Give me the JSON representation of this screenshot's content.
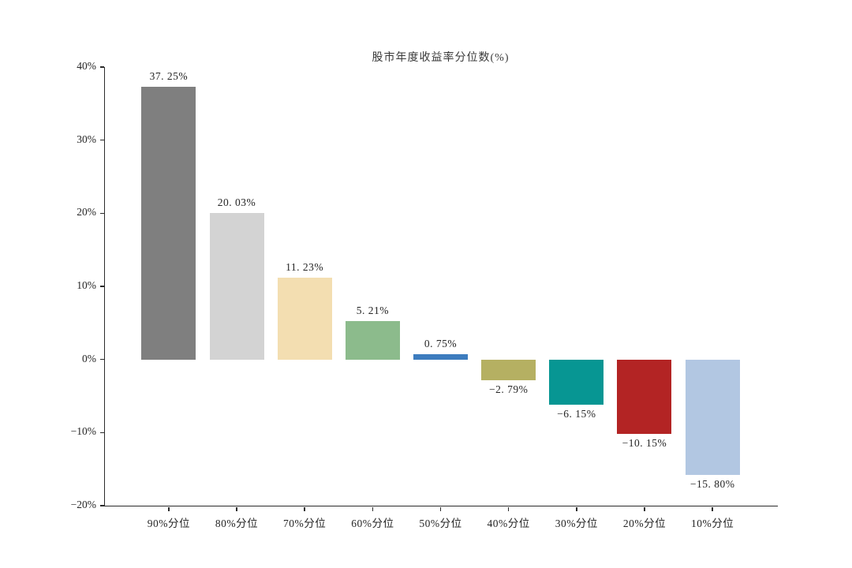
{
  "page": {
    "background_color": "#ffffff"
  },
  "chart_data": {
    "type": "bar",
    "title": "股市年度收益率分位数(%)",
    "xlabel": "",
    "ylabel": "",
    "grid": false,
    "legend": "none",
    "categories": [
      "90%分位",
      "80%分位",
      "70%分位",
      "60%分位",
      "50%分位",
      "40%分位",
      "30%分位",
      "20%分位",
      "10%分位"
    ],
    "values": [
      37.25,
      20.03,
      11.23,
      5.21,
      0.75,
      -2.79,
      -6.15,
      -10.15,
      -15.8
    ],
    "value_labels": [
      "37. 25%",
      "20. 03%",
      "11. 23%",
      "5. 21%",
      "0. 75%",
      "−2. 79%",
      "−6. 15%",
      "−10. 15%",
      "−15. 80%"
    ],
    "bar_colors": [
      "#7f7f7f",
      "#d3d3d3",
      "#f3deb1",
      "#8cbb8c",
      "#3d7cbe",
      "#b5b062",
      "#079693",
      "#b32424",
      "#b2c7e2"
    ],
    "ylim": [
      -20,
      40
    ],
    "yticks": [
      40,
      30,
      20,
      10,
      0,
      -10,
      -20
    ],
    "ytick_labels": [
      "40%",
      "30%",
      "20%",
      "10%",
      "0%",
      "−10%",
      "−20%"
    ],
    "axis_color": "#2b2b2b",
    "text_color": "#262626"
  }
}
